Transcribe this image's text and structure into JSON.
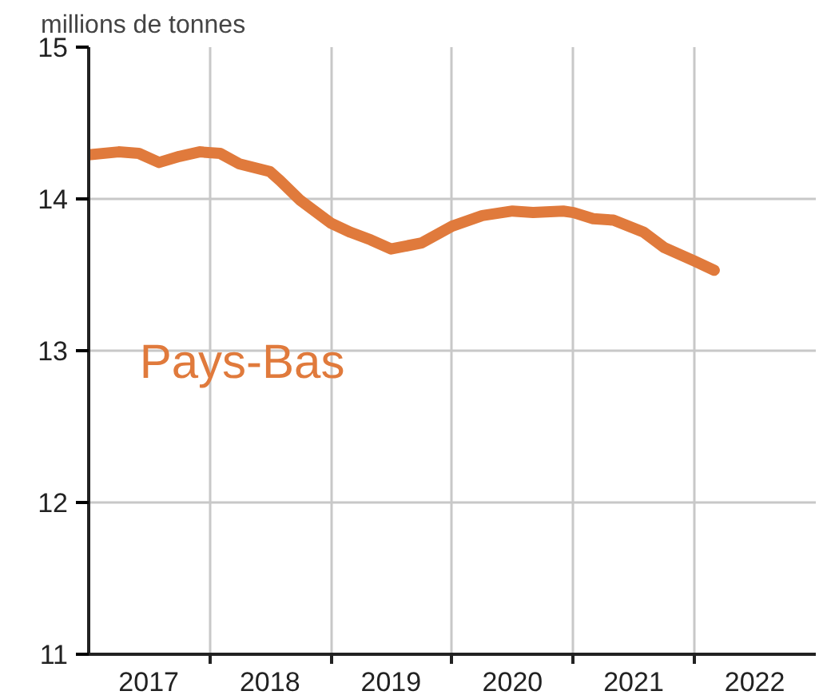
{
  "chart_data": {
    "type": "line",
    "ylabel": "millions de tonnes",
    "x": [
      "2017-01",
      "2017-04",
      "2017-06",
      "2017-08",
      "2017-10",
      "2017-12",
      "2018-02",
      "2018-04",
      "2018-07",
      "2018-08",
      "2018-10",
      "2019-01",
      "2019-03",
      "2019-05",
      "2019-07",
      "2019-10",
      "2020-01",
      "2020-04",
      "2020-07",
      "2020-09",
      "2020-12",
      "2021-01",
      "2021-03",
      "2021-05",
      "2021-08",
      "2021-10",
      "2022-01",
      "2022-03"
    ],
    "series": [
      {
        "name": "Pays-Bas",
        "color": "#e07a3c",
        "values": [
          14.29,
          14.31,
          14.3,
          14.24,
          14.28,
          14.31,
          14.3,
          14.23,
          14.18,
          14.12,
          13.99,
          13.84,
          13.78,
          13.73,
          13.67,
          13.71,
          13.82,
          13.89,
          13.92,
          13.91,
          13.92,
          13.91,
          13.87,
          13.86,
          13.78,
          13.68,
          13.59,
          13.53
        ]
      }
    ],
    "xlim": [
      "2017-01-01",
      "2023-01-01"
    ],
    "xticks": [
      {
        "value": "2017-07-01",
        "label": "2017"
      },
      {
        "value": "2018-07-01",
        "label": "2018"
      },
      {
        "value": "2019-07-01",
        "label": "2019"
      },
      {
        "value": "2020-07-01",
        "label": "2020"
      },
      {
        "value": "2021-07-01",
        "label": "2021"
      },
      {
        "value": "2022-07-01",
        "label": "2022"
      },
      {
        "value": "2018-01-01",
        "label": null
      },
      {
        "value": "2019-01-01",
        "label": null
      },
      {
        "value": "2020-01-01",
        "label": null
      },
      {
        "value": "2021-01-01",
        "label": null
      },
      {
        "value": "2022-01-01",
        "label": null
      }
    ],
    "ylim": [
      11,
      15
    ],
    "yticks": [
      11,
      12,
      13,
      14,
      15
    ],
    "grid": true,
    "line_style": "solid",
    "marker": "none"
  }
}
